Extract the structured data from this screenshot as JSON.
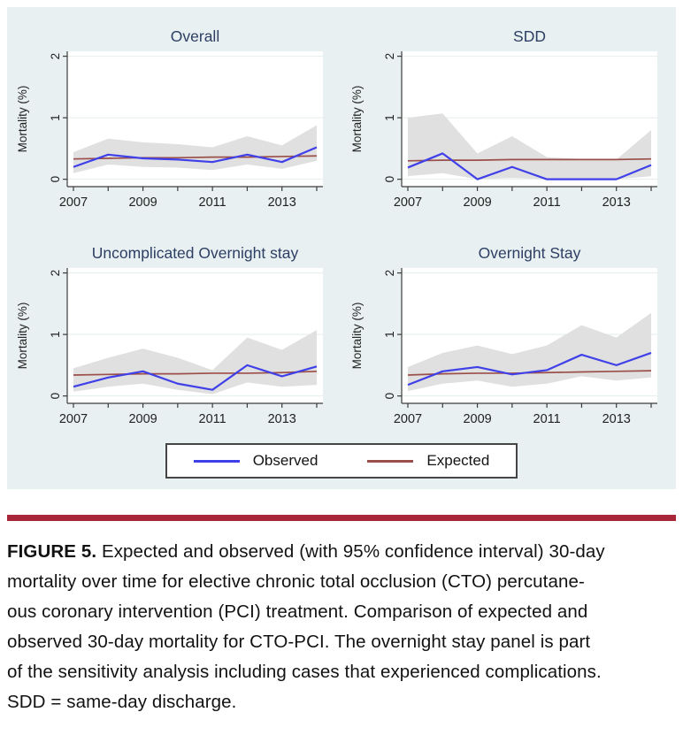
{
  "colors": {
    "fig_bg": "#e9f0f1",
    "plot_bg": "#ffffff",
    "grid": "#e4eeec",
    "axis": "#3c3c3c",
    "tick_text": "#222222",
    "title_text": "#2c3e63",
    "observed": "#4040e8",
    "expected": "#9b4f4a",
    "ci_band": "#e0e0e0",
    "rule": "#a72637"
  },
  "legend": {
    "items": [
      {
        "label": "Observed",
        "color": "#4040e8"
      },
      {
        "label": "Expected",
        "color": "#9b4f4a"
      }
    ]
  },
  "chart_data": [
    {
      "type": "line",
      "title": "Overall",
      "xlabel": "",
      "ylabel": "Mortality (%)",
      "ylim": [
        0,
        2
      ],
      "yticks": [
        0,
        1,
        2
      ],
      "x": [
        2007,
        2008,
        2009,
        2010,
        2011,
        2012,
        2013,
        2014
      ],
      "xticks": [
        2007,
        2008,
        2009,
        2010,
        2011,
        2012,
        2013,
        2014
      ],
      "xtick_labels": [
        "2007",
        "2009",
        "2011",
        "2013"
      ],
      "series": [
        {
          "name": "Observed",
          "color": "#4040e8",
          "values": [
            0.2,
            0.4,
            0.34,
            0.32,
            0.28,
            0.4,
            0.28,
            0.52
          ]
        },
        {
          "name": "Expected",
          "color": "#9b4f4a",
          "values": [
            0.33,
            0.34,
            0.35,
            0.35,
            0.36,
            0.36,
            0.37,
            0.38
          ]
        }
      ],
      "ci_band": {
        "label": "95% confidence interval",
        "series": "Observed",
        "color": "#e0e0e0",
        "low": [
          0.1,
          0.24,
          0.2,
          0.19,
          0.15,
          0.24,
          0.17,
          0.3
        ],
        "high": [
          0.44,
          0.66,
          0.6,
          0.57,
          0.52,
          0.7,
          0.55,
          0.88
        ]
      }
    },
    {
      "type": "line",
      "title": "SDD",
      "xlabel": "",
      "ylabel": "Mortality (%)",
      "ylim": [
        0,
        2
      ],
      "yticks": [
        0,
        1,
        2
      ],
      "x": [
        2007,
        2008,
        2009,
        2010,
        2011,
        2012,
        2013,
        2014
      ],
      "xticks": [
        2007,
        2008,
        2009,
        2010,
        2011,
        2012,
        2013,
        2014
      ],
      "xtick_labels": [
        "2007",
        "2009",
        "2011",
        "2013"
      ],
      "series": [
        {
          "name": "Observed",
          "color": "#4040e8",
          "values": [
            0.19,
            0.42,
            0.0,
            0.2,
            0.0,
            0.0,
            0.0,
            0.23
          ]
        },
        {
          "name": "Expected",
          "color": "#9b4f4a",
          "values": [
            0.3,
            0.31,
            0.31,
            0.32,
            0.32,
            0.32,
            0.32,
            0.33
          ]
        }
      ],
      "ci_band": {
        "label": "95% confidence interval",
        "series": "Observed",
        "color": "#e0e0e0",
        "low": [
          0.05,
          0.1,
          0.0,
          0.02,
          0.0,
          0.0,
          0.0,
          0.05
        ],
        "high": [
          1.0,
          1.07,
          0.42,
          0.7,
          0.36,
          0.33,
          0.32,
          0.8
        ]
      }
    },
    {
      "type": "line",
      "title": "Uncomplicated Overnight stay",
      "xlabel": "",
      "ylabel": "Mortality (%)",
      "ylim": [
        0,
        2
      ],
      "yticks": [
        0,
        1,
        2
      ],
      "x": [
        2007,
        2008,
        2009,
        2010,
        2011,
        2012,
        2013,
        2014
      ],
      "xticks": [
        2007,
        2008,
        2009,
        2010,
        2011,
        2012,
        2013,
        2014
      ],
      "xtick_labels": [
        "2007",
        "2009",
        "2011",
        "2013"
      ],
      "series": [
        {
          "name": "Observed",
          "color": "#4040e8",
          "values": [
            0.15,
            0.3,
            0.4,
            0.2,
            0.1,
            0.5,
            0.32,
            0.48
          ]
        },
        {
          "name": "Expected",
          "color": "#9b4f4a",
          "values": [
            0.34,
            0.35,
            0.36,
            0.36,
            0.37,
            0.37,
            0.38,
            0.4
          ]
        }
      ],
      "ci_band": {
        "label": "95% confidence interval",
        "series": "Observed",
        "color": "#e0e0e0",
        "low": [
          0.07,
          0.15,
          0.2,
          0.1,
          0.03,
          0.22,
          0.15,
          0.18
        ],
        "high": [
          0.45,
          0.62,
          0.77,
          0.62,
          0.42,
          0.95,
          0.75,
          1.07
        ]
      }
    },
    {
      "type": "line",
      "title": "Overnight Stay",
      "xlabel": "",
      "ylabel": "Mortality (%)",
      "ylim": [
        0,
        2
      ],
      "yticks": [
        0,
        1,
        2
      ],
      "x": [
        2007,
        2008,
        2009,
        2010,
        2011,
        2012,
        2013,
        2014
      ],
      "xticks": [
        2007,
        2008,
        2009,
        2010,
        2011,
        2012,
        2013,
        2014
      ],
      "xtick_labels": [
        "2007",
        "2009",
        "2011",
        "2013"
      ],
      "series": [
        {
          "name": "Observed",
          "color": "#4040e8",
          "values": [
            0.18,
            0.4,
            0.47,
            0.35,
            0.42,
            0.67,
            0.5,
            0.7
          ]
        },
        {
          "name": "Expected",
          "color": "#9b4f4a",
          "values": [
            0.34,
            0.36,
            0.37,
            0.37,
            0.38,
            0.39,
            0.4,
            0.41
          ]
        }
      ],
      "ci_band": {
        "label": "95% confidence interval",
        "series": "Observed",
        "color": "#e0e0e0",
        "low": [
          0.08,
          0.2,
          0.25,
          0.15,
          0.2,
          0.32,
          0.25,
          0.3
        ],
        "high": [
          0.47,
          0.7,
          0.82,
          0.68,
          0.82,
          1.15,
          0.95,
          1.35
        ]
      }
    }
  ],
  "caption": {
    "lead": "FIGURE 5.",
    "lines": [
      "Expected and observed (with 95% confidence interval) 30-day",
      "mortality over time for elective chronic total occlusion (CTO) percutane-",
      "ous coronary intervention (PCI) treatment. Comparison of expected and",
      "observed 30-day mortality for CTO-PCI. The overnight stay panel is part",
      "of the sensitivity analysis including cases that experienced complications.",
      "SDD = same-day discharge."
    ]
  }
}
